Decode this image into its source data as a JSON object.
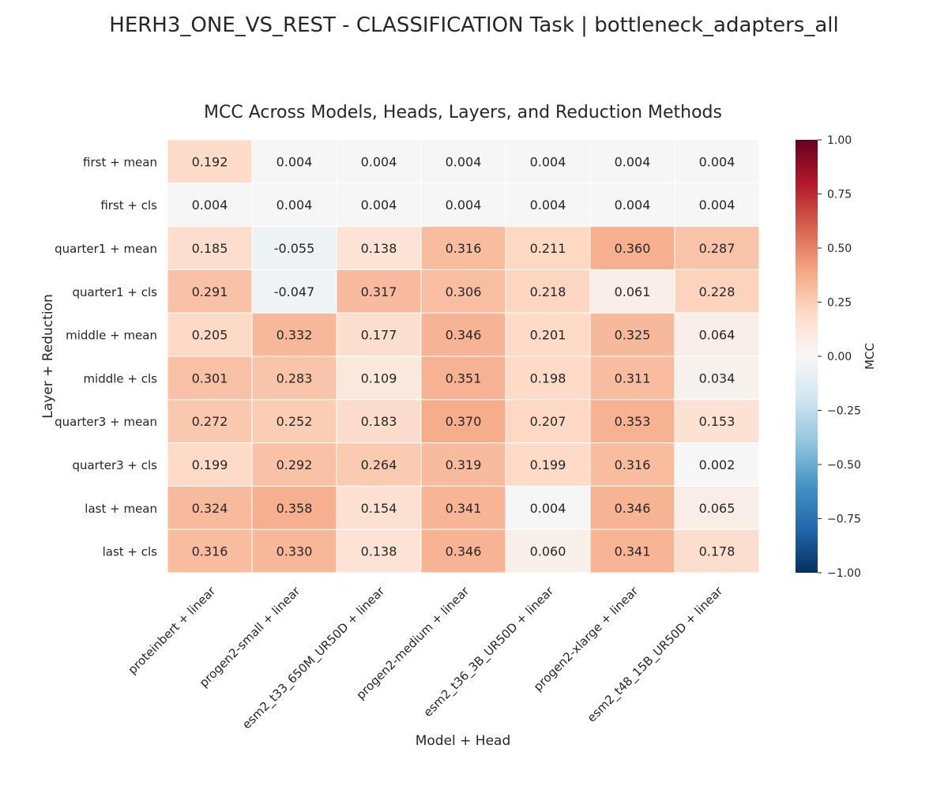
{
  "page_title": "HERH3_ONE_VS_REST - CLASSIFICATION Task | bottleneck_adapters_all",
  "chart_data": {
    "type": "heatmap",
    "title": "MCC Across Models, Heads, Layers, and Reduction Methods",
    "xlabel": "Model + Head",
    "ylabel": "Layer + Reduction",
    "x_categories": [
      "proteinbert + linear",
      "progen2-small + linear",
      "esm2_t33_650M_UR50D + linear",
      "progen2-medium + linear",
      "esm2_t36_3B_UR50D + linear",
      "progen2-xlarge + linear",
      "esm2_t48_15B_UR50D + linear"
    ],
    "y_categories": [
      "first + mean",
      "first + cls",
      "quarter1 + mean",
      "quarter1 + cls",
      "middle + mean",
      "middle + cls",
      "quarter3 + mean",
      "quarter3 + cls",
      "last + mean",
      "last + cls"
    ],
    "values": [
      [
        0.192,
        0.004,
        0.004,
        0.004,
        0.004,
        0.004,
        0.004
      ],
      [
        0.004,
        0.004,
        0.004,
        0.004,
        0.004,
        0.004,
        0.004
      ],
      [
        0.185,
        -0.055,
        0.138,
        0.316,
        0.211,
        0.36,
        0.287
      ],
      [
        0.291,
        -0.047,
        0.317,
        0.306,
        0.218,
        0.061,
        0.228
      ],
      [
        0.205,
        0.332,
        0.177,
        0.346,
        0.201,
        0.325,
        0.064
      ],
      [
        0.301,
        0.283,
        0.109,
        0.351,
        0.198,
        0.311,
        0.034
      ],
      [
        0.272,
        0.252,
        0.183,
        0.37,
        0.207,
        0.353,
        0.153
      ],
      [
        0.199,
        0.292,
        0.264,
        0.319,
        0.199,
        0.316,
        0.002
      ],
      [
        0.324,
        0.358,
        0.154,
        0.341,
        0.004,
        0.346,
        0.065
      ],
      [
        0.316,
        0.33,
        0.138,
        0.346,
        0.06,
        0.341,
        0.178
      ]
    ],
    "value_format": "0.000",
    "colorbar": {
      "label": "MCC",
      "range": [
        -1.0,
        1.0
      ],
      "ticks": [
        1.0,
        0.75,
        0.5,
        0.25,
        0.0,
        -0.25,
        -0.5,
        -0.75,
        -1.0
      ],
      "tick_labels": [
        "1.00",
        "0.75",
        "0.50",
        "0.25",
        "0.00",
        "−0.25",
        "−0.50",
        "−0.75",
        "−1.00"
      ],
      "colormap": "RdBu_r",
      "stops": [
        "#053061",
        "#2166ac",
        "#4393c3",
        "#92c5de",
        "#d1e5f0",
        "#f7f7f7",
        "#fddbc7",
        "#f4a582",
        "#d6604d",
        "#b2182b",
        "#67001f"
      ]
    },
    "legend": "colorbar-right",
    "grid": false
  }
}
